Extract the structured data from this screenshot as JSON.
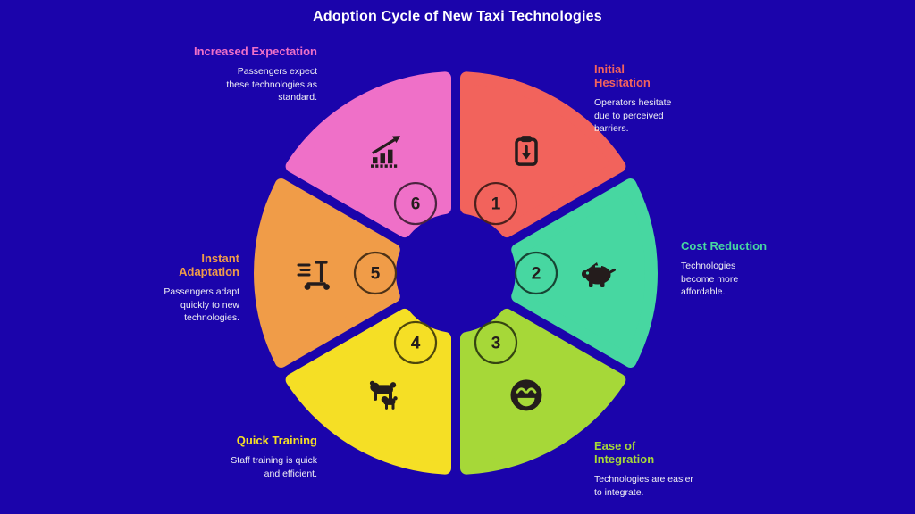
{
  "title": "Adoption Cycle of New Taxi Technologies",
  "colors": {
    "background": "#1b04ab",
    "title_text": "#ffffff",
    "body_text": "#f0f0f4",
    "icon_ink": "#241c1c"
  },
  "segments": [
    {
      "number": "1",
      "label": "Initial Hesitation",
      "description": "Operators hesitate due to perceived barriers.",
      "color": "#f2635c",
      "icon": "clipboard-icon"
    },
    {
      "number": "2",
      "label": "Cost Reduction",
      "description": "Technologies become more affordable.",
      "color": "#47d7a1",
      "icon": "piggy-bank-icon"
    },
    {
      "number": "3",
      "label": "Ease of Integration",
      "description": "Technologies are easier to integrate.",
      "color": "#a6d838",
      "icon": "happy-face-icon"
    },
    {
      "number": "4",
      "label": "Quick Training",
      "description": "Staff training is quick and efficient.",
      "color": "#f5df25",
      "icon": "dog-training-icon"
    },
    {
      "number": "5",
      "label": "Instant Adaptation",
      "description": "Passengers adapt quickly to new technologies.",
      "color": "#f09c48",
      "icon": "scooter-icon"
    },
    {
      "number": "6",
      "label": "Increased Expectation",
      "description": "Passengers expect these technologies as standard.",
      "color": "#ef70c8",
      "icon": "growth-chart-icon"
    }
  ]
}
